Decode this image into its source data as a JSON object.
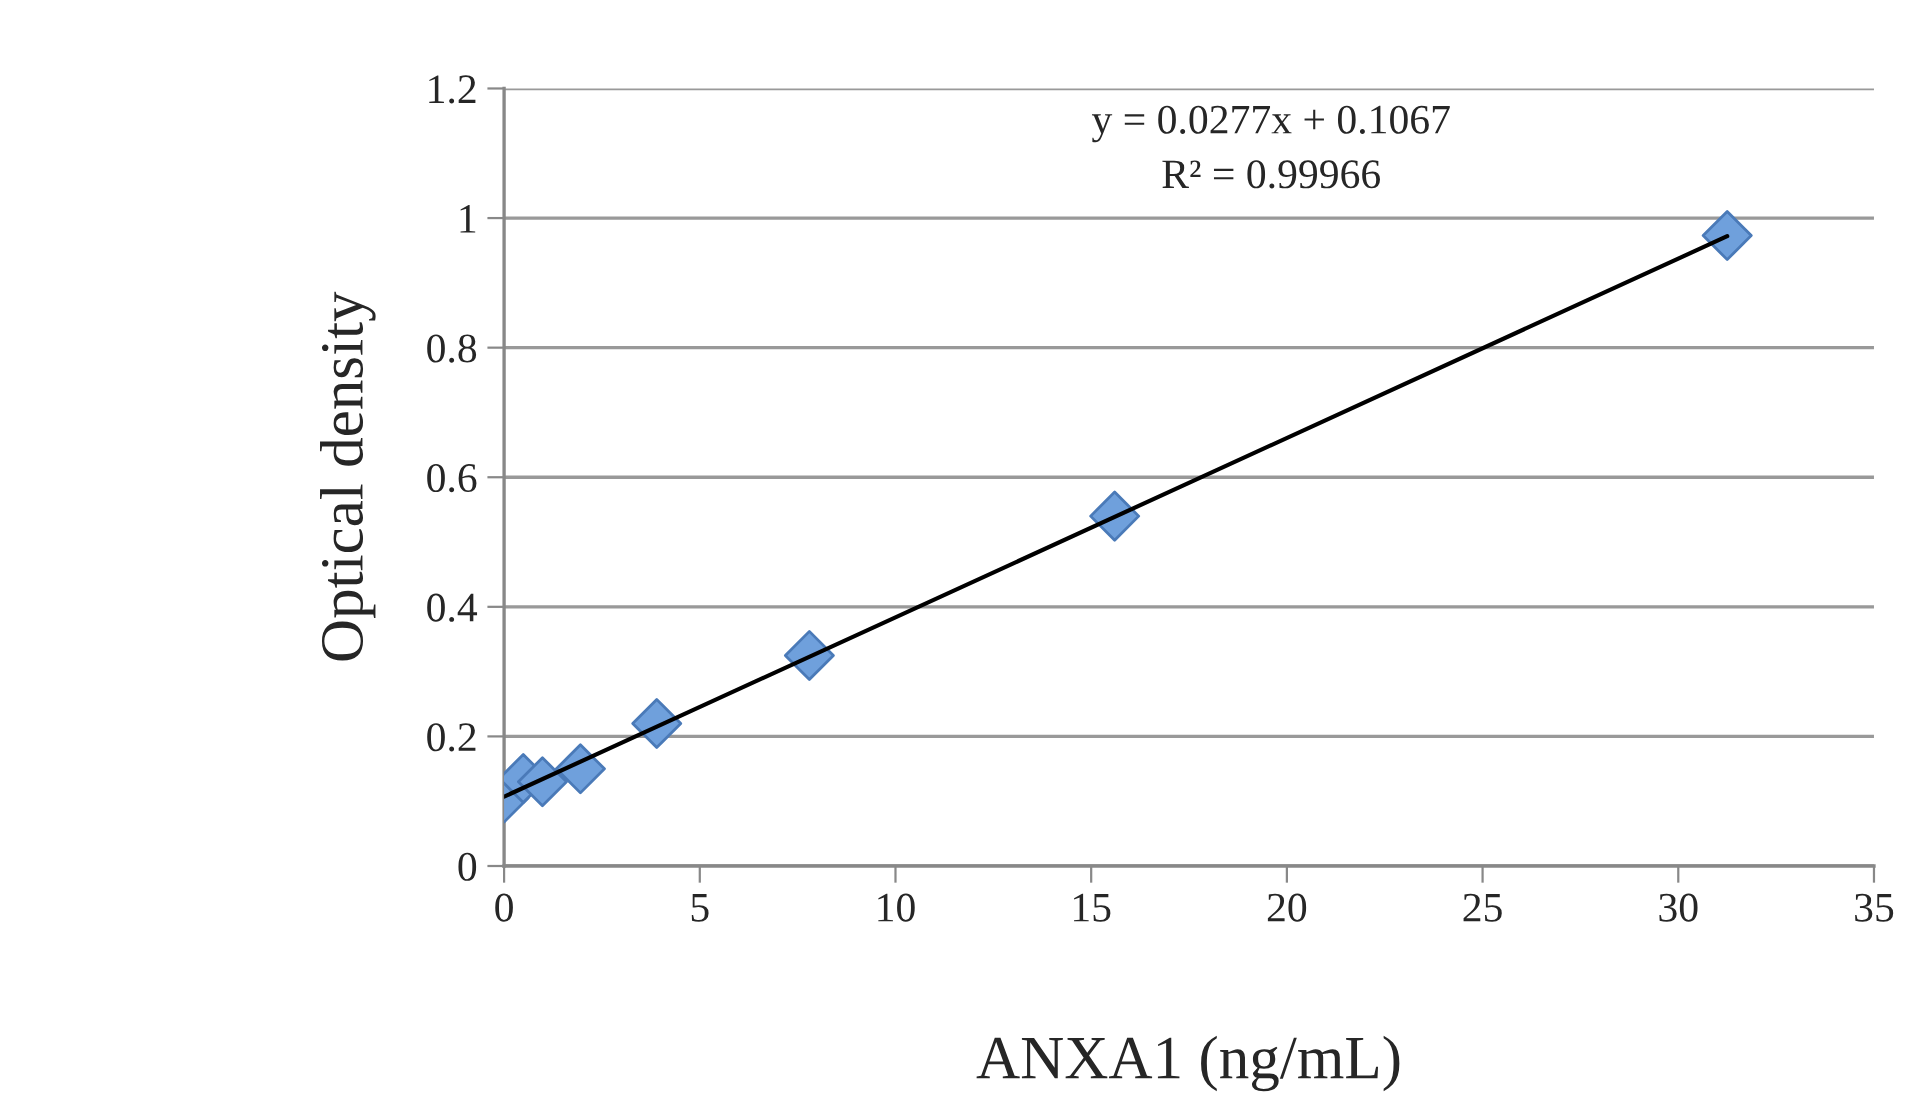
{
  "chart_data": {
    "type": "scatter",
    "xlabel": "ANXA1 (ng/mL)",
    "ylabel": "Optical density",
    "annotations": [
      "y = 0.0277x + 0.1067",
      "R² = 0.99966"
    ],
    "series": [
      {
        "color": "#6fa0dc",
        "marker": "diamond",
        "x": [
          0,
          0.49,
          0.98,
          1.95,
          3.9,
          7.8,
          15.6,
          31.25
        ],
        "values": [
          0.105,
          0.135,
          0.13,
          0.15,
          0.22,
          0.325,
          0.54,
          0.973
        ]
      },
      {
        "type": "line",
        "color": "#000000",
        "line_style": "solid",
        "x": [
          0,
          31.25
        ],
        "values": [
          0.107,
          0.972
        ]
      }
    ],
    "xlim": [
      0,
      35
    ],
    "xticks": [
      0,
      5,
      10,
      15,
      20,
      25,
      30,
      35
    ],
    "ylim": [
      0,
      1.2
    ],
    "yticks": [
      0,
      0.2,
      0.4,
      0.6,
      0.8,
      1,
      1.2
    ],
    "grid": "y",
    "legend": false
  }
}
